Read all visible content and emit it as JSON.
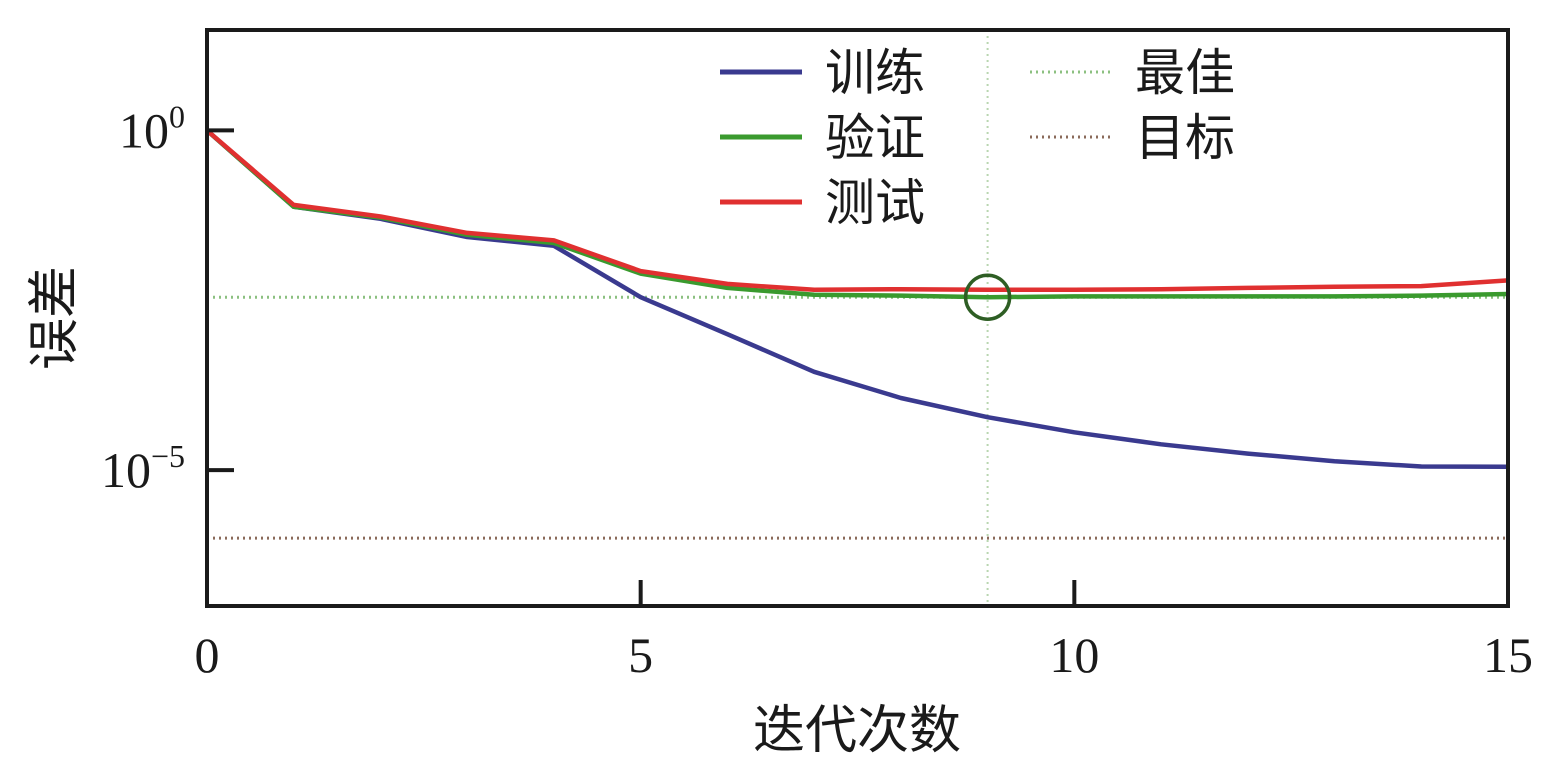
{
  "chart_data": {
    "type": "line",
    "xlabel": "迭代次数",
    "ylabel": "误差",
    "y_scale": "log",
    "xlim": [
      0,
      15
    ],
    "ylim": [
      1e-07,
      30
    ],
    "x_ticks": [
      {
        "value": 0,
        "label": "0"
      },
      {
        "value": 5,
        "label": "5"
      },
      {
        "value": 10,
        "label": "10"
      },
      {
        "value": 15,
        "label": "15"
      }
    ],
    "y_ticks": [
      {
        "value": 1,
        "base": "10",
        "exponent": "0"
      },
      {
        "value": 1e-05,
        "base": "10",
        "exponent": "−5"
      }
    ],
    "x": [
      0,
      1,
      2,
      3,
      4,
      5,
      6,
      7,
      8,
      9,
      10,
      11,
      12,
      13,
      14,
      15
    ],
    "series": [
      {
        "name": "训练",
        "color": "#3a3a8f",
        "style": "solid",
        "values": [
          1.0,
          0.075,
          0.05,
          0.027,
          0.02,
          0.0035,
          0.001,
          0.00028,
          0.000115,
          6e-05,
          3.6e-05,
          2.4e-05,
          1.75e-05,
          1.35e-05,
          1.13e-05,
          1.12e-05
        ]
      },
      {
        "name": "验证",
        "color": "#3a9a2e",
        "style": "solid",
        "values": [
          1.0,
          0.075,
          0.052,
          0.029,
          0.022,
          0.0078,
          0.0048,
          0.0038,
          0.0037,
          0.0035,
          0.0036,
          0.0036,
          0.0036,
          0.0036,
          0.0037,
          0.0039
        ]
      },
      {
        "name": "测试",
        "color": "#e03030",
        "style": "solid",
        "values": [
          1.0,
          0.08,
          0.054,
          0.031,
          0.024,
          0.0085,
          0.0055,
          0.0045,
          0.0046,
          0.0045,
          0.0045,
          0.0046,
          0.0048,
          0.005,
          0.0051,
          0.0062
        ]
      },
      {
        "name": "最佳",
        "color": "#8cc080",
        "style": "dotted",
        "values": [
          0.0035,
          0.0035,
          0.0035,
          0.0035,
          0.0035,
          0.0035,
          0.0035,
          0.0035,
          0.0035,
          0.0035,
          0.0035,
          0.0035,
          0.0035,
          0.0035,
          0.0035,
          0.0035
        ]
      },
      {
        "name": "目标",
        "color": "#8a6a5a",
        "style": "dotted",
        "values": [
          1e-06,
          1e-06,
          1e-06,
          1e-06,
          1e-06,
          1e-06,
          1e-06,
          1e-06,
          1e-06,
          1e-06,
          1e-06,
          1e-06,
          1e-06,
          1e-06,
          1e-06,
          1e-06
        ]
      }
    ],
    "best_point": {
      "x": 9,
      "y": 0.0035,
      "vline_color": "#b9d6b0",
      "marker_color": "#2e5e24"
    },
    "legend_position": "top-right"
  }
}
